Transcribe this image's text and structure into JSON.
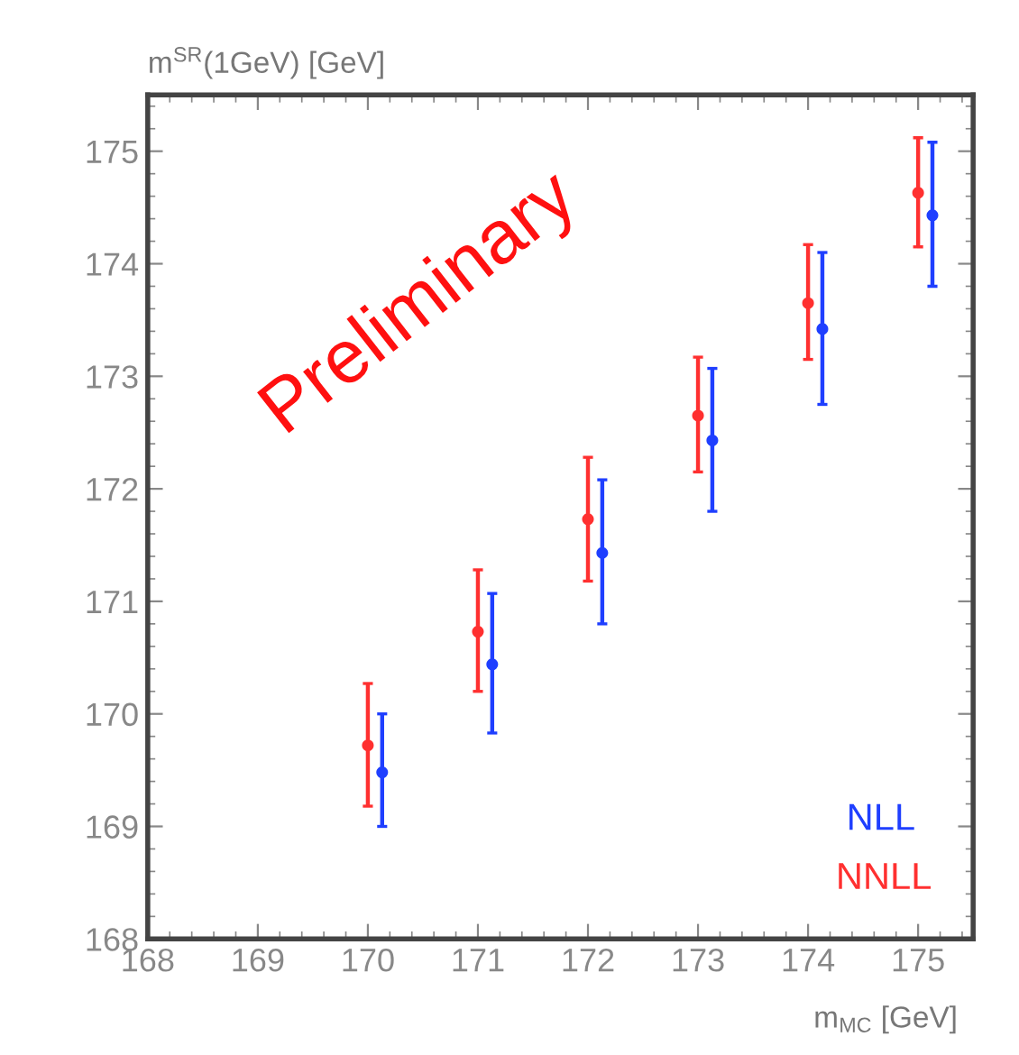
{
  "chart_data": {
    "type": "scatter",
    "xlabel": "m$_{MC}$ [GeV]",
    "ylabel": "m$^{SR}$(1GeV) [GeV]",
    "xlim": [
      168,
      175.5
    ],
    "ylim": [
      168,
      175.5
    ],
    "xticks": [
      168,
      169,
      170,
      171,
      172,
      173,
      174,
      175
    ],
    "yticks": [
      168,
      169,
      170,
      171,
      172,
      173,
      174,
      175
    ],
    "marker": "circle",
    "grid": false,
    "legend": "bottom right",
    "annotations": [
      "Preliminary"
    ],
    "series": [
      {
        "name": "NLL",
        "color": "#1f3fff",
        "x": [
          170.13,
          171.13,
          172.13,
          173.13,
          174.13,
          175.13
        ],
        "values": [
          169.48,
          170.44,
          171.43,
          172.43,
          173.42,
          174.43
        ],
        "errors": [
          [
            169.0,
            170.0
          ],
          [
            169.83,
            171.07
          ],
          [
            170.8,
            172.08
          ],
          [
            171.8,
            173.07
          ],
          [
            172.75,
            174.1
          ],
          [
            173.8,
            175.08
          ]
        ]
      },
      {
        "name": "NNLL",
        "color": "#ff3030",
        "x": [
          170,
          171,
          172,
          173,
          174,
          175
        ],
        "values": [
          169.72,
          170.73,
          171.73,
          172.65,
          173.65,
          174.63
        ],
        "errors": [
          [
            169.18,
            170.27
          ],
          [
            170.2,
            171.28
          ],
          [
            171.18,
            172.28
          ],
          [
            172.15,
            173.17
          ],
          [
            173.15,
            174.17
          ],
          [
            174.15,
            175.12
          ]
        ]
      }
    ]
  }
}
